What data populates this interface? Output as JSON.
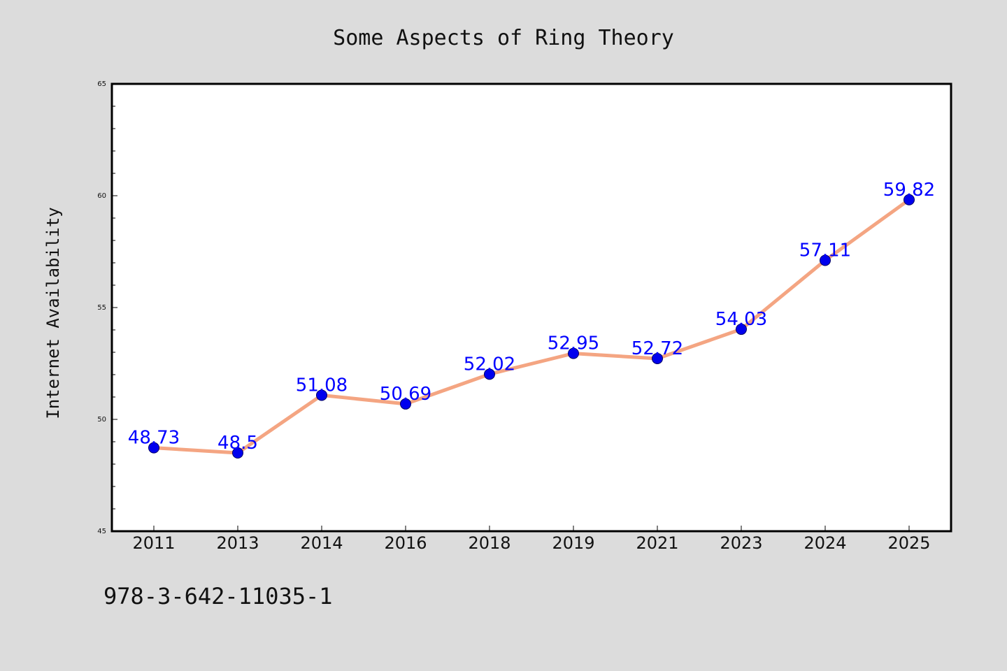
{
  "footer": {
    "code": "978-3-642-11035-1"
  },
  "colors": {
    "background": "#dcdcdc",
    "plot_area": "#ffffff",
    "line": "#f4a582",
    "marker": "#0000ee",
    "data_label": "#0000ff",
    "axis": "#000000"
  },
  "chart_data": {
    "type": "line",
    "title": "Some Aspects of Ring Theory",
    "xlabel": "",
    "ylabel": "Internet Availability",
    "x": [
      "2011",
      "2013",
      "2014",
      "2016",
      "2018",
      "2019",
      "2021",
      "2023",
      "2024",
      "2025"
    ],
    "series": [
      {
        "values": [
          48.73,
          48.5,
          51.08,
          50.69,
          52.02,
          52.95,
          52.72,
          54.03,
          57.11,
          59.82
        ]
      }
    ],
    "data_labels": [
      "48.73",
      "48.5",
      "51.08",
      "50.69",
      "52.02",
      "52.95",
      "52.72",
      "54.03",
      "57.11",
      "59.82"
    ],
    "ylim": [
      45,
      65
    ],
    "yticks": [
      45,
      50,
      55,
      60,
      65
    ],
    "grid": false,
    "legend": "none"
  }
}
